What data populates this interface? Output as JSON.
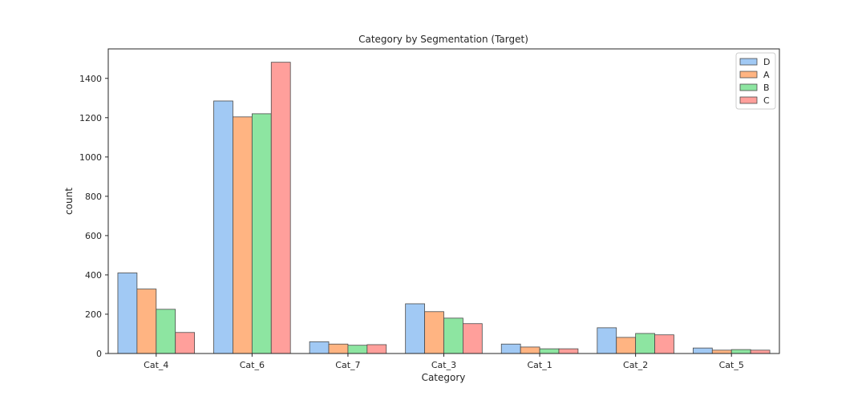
{
  "chart_data": {
    "type": "bar",
    "title": "Category by Segmentation (Target)",
    "xlabel": "Category",
    "ylabel": "count",
    "categories": [
      "Cat_4",
      "Cat_6",
      "Cat_7",
      "Cat_3",
      "Cat_1",
      "Cat_2",
      "Cat_5"
    ],
    "ylim": [
      0,
      1550
    ],
    "yticks": [
      0,
      200,
      400,
      600,
      800,
      1000,
      1200,
      1400
    ],
    "grid": false,
    "legend_position": "top-right",
    "series": [
      {
        "name": "D",
        "color": "#a1c9f4",
        "values": [
          410,
          1285,
          60,
          253,
          48,
          131,
          28
        ]
      },
      {
        "name": "A",
        "color": "#ffb482",
        "values": [
          328,
          1204,
          48,
          213,
          33,
          82,
          17
        ]
      },
      {
        "name": "B",
        "color": "#8de5a1",
        "values": [
          225,
          1220,
          42,
          180,
          24,
          102,
          20
        ]
      },
      {
        "name": "C",
        "color": "#ff9f9b",
        "values": [
          107,
          1482,
          45,
          152,
          24,
          95,
          17
        ]
      }
    ]
  }
}
